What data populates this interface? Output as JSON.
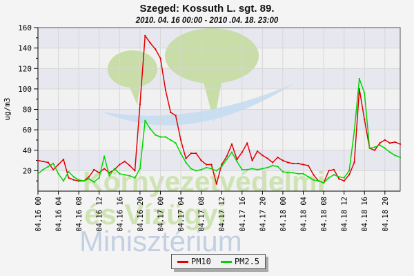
{
  "header": {
    "title": "Szeged: Kossuth L. sgt. 89.",
    "subtitle": "2010. 04. 16 00:00 - 2010 .04. 18. 23:00"
  },
  "colors": {
    "page_bg": "#f4f4f4",
    "band_light": "#f1f1f1",
    "band_lavender": "#e7e7f0",
    "grid": "#d6d6d6",
    "frame": "#555555",
    "axis": "#000000",
    "pm10": "#e00000",
    "pm25": "#00d500"
  },
  "watermark": {
    "line1": "Környezetvédelmi",
    "line2": "és Vízügyi",
    "line3": "Minisztérium",
    "green_text": "#cee3b2",
    "blue_text": "#c3cfe3",
    "balloon_green": "#c8dda8",
    "swoosh_blue": "#c9def0"
  },
  "legend": {
    "items": [
      {
        "label": "PM10",
        "color": "#e00000"
      },
      {
        "label": "PM2.5",
        "color": "#00d500"
      }
    ]
  },
  "chart_data": {
    "type": "line",
    "title": "Szeged: Kossuth L. sgt. 89.",
    "subtitle": "2010. 04. 16 00:00 - 2010 .04. 18. 23:00",
    "xlabel": "",
    "ylabel": "ug/m3",
    "ylim": [
      0,
      160
    ],
    "yticks": [
      20,
      40,
      60,
      80,
      100,
      120,
      140,
      160
    ],
    "y_minor_step": 10,
    "grid": true,
    "legend_position": "bottom-center",
    "x_tick_hours": [
      0,
      4,
      8,
      12,
      16,
      20,
      24,
      28,
      32,
      36,
      40,
      44,
      48,
      52,
      56,
      60,
      64,
      68
    ],
    "x_tick_labels": [
      "04.16 00",
      "04.16 04",
      "04.16 08",
      "04.16 12",
      "04.16 16",
      "04.16 20",
      "04.17 00",
      "04.17 04",
      "04.17 08",
      "04.17 12",
      "04.17 16",
      "04.17 20",
      "04.18 00",
      "04.18 04",
      "04.18 08",
      "04.18 12",
      "04.18 16",
      "04.18 20"
    ],
    "hours_span": 72,
    "series": [
      {
        "name": "PM10",
        "color": "#e00000",
        "values": [
          30,
          29,
          28,
          21,
          26,
          31,
          13,
          11,
          10,
          10,
          14,
          21,
          18,
          22,
          18,
          21,
          26,
          29,
          25,
          20,
          85,
          152,
          145,
          139,
          130,
          99,
          77,
          74,
          50,
          32,
          37,
          37,
          30,
          26,
          26,
          7,
          26,
          34,
          46,
          31,
          38,
          47,
          30,
          39,
          35,
          32,
          28,
          33,
          30,
          28,
          27,
          27,
          26,
          25,
          16,
          10,
          8,
          20,
          21,
          12,
          10,
          16,
          28,
          100,
          70,
          42,
          40,
          47,
          50,
          47,
          48,
          46
        ]
      },
      {
        "name": "PM2.5",
        "color": "#00d500",
        "values": [
          17,
          21,
          24,
          27,
          17,
          10,
          19,
          14,
          11,
          10,
          12,
          9,
          13,
          34,
          15,
          22,
          17,
          16,
          15,
          13,
          22,
          69,
          61,
          55,
          53,
          53,
          50,
          47,
          37,
          28,
          22,
          20,
          21,
          23,
          22,
          20,
          24,
          31,
          38,
          29,
          21,
          21,
          22,
          21,
          22,
          23,
          25,
          24,
          19,
          18,
          18,
          17,
          17,
          14,
          11,
          10,
          8,
          13,
          16,
          14,
          13,
          20,
          59,
          110,
          96,
          42,
          43,
          45,
          42,
          38,
          35,
          33
        ]
      }
    ]
  }
}
